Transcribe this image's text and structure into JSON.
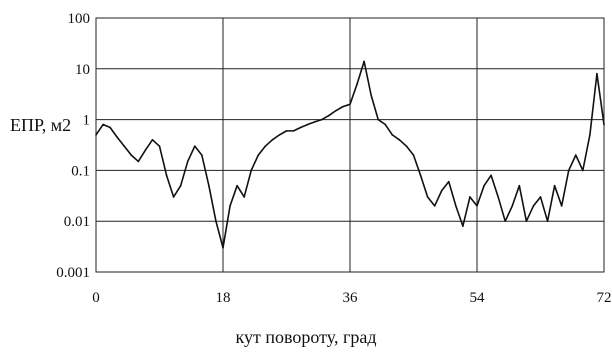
{
  "chart_data": {
    "type": "line",
    "title": "",
    "xlabel": "кут повороту, град",
    "ylabel": "ЕПР, м2",
    "xlim": [
      0,
      72
    ],
    "ylim": [
      0.001,
      100
    ],
    "y_scale": "log",
    "grid": true,
    "x_ticks": [
      0,
      18,
      36,
      54,
      72
    ],
    "x_tick_labels": [
      "0",
      "18",
      "36",
      "54",
      "72"
    ],
    "y_ticks": [
      0.001,
      0.01,
      0.1,
      1,
      10,
      100
    ],
    "y_tick_labels": [
      "0.001",
      "0.01",
      "0.1",
      "1",
      "10",
      "100"
    ],
    "series": [
      {
        "color": "#111111",
        "x": [
          0,
          1,
          2,
          3,
          4,
          5,
          6,
          7,
          8,
          9,
          10,
          11,
          12,
          13,
          14,
          15,
          16,
          17,
          18,
          19,
          20,
          21,
          22,
          23,
          24,
          25,
          26,
          27,
          28,
          29,
          30,
          31,
          32,
          33,
          34,
          35,
          36,
          37,
          38,
          39,
          40,
          41,
          42,
          43,
          44,
          45,
          46,
          47,
          48,
          49,
          50,
          51,
          52,
          53,
          54,
          55,
          56,
          57,
          58,
          59,
          60,
          61,
          62,
          63,
          64,
          65,
          66,
          67,
          68,
          69,
          70,
          71,
          72
        ],
        "y": [
          0.5,
          0.8,
          0.7,
          0.45,
          0.3,
          0.2,
          0.15,
          0.25,
          0.4,
          0.3,
          0.08,
          0.03,
          0.05,
          0.15,
          0.3,
          0.2,
          0.05,
          0.01,
          0.003,
          0.02,
          0.05,
          0.03,
          0.1,
          0.2,
          0.3,
          0.4,
          0.5,
          0.6,
          0.6,
          0.7,
          0.8,
          0.9,
          1.0,
          1.2,
          1.5,
          1.8,
          2.0,
          5.0,
          14,
          3.0,
          1.0,
          0.8,
          0.5,
          0.4,
          0.3,
          0.2,
          0.08,
          0.03,
          0.02,
          0.04,
          0.06,
          0.02,
          0.008,
          0.03,
          0.02,
          0.05,
          0.08,
          0.03,
          0.01,
          0.02,
          0.05,
          0.01,
          0.02,
          0.03,
          0.01,
          0.05,
          0.02,
          0.1,
          0.2,
          0.1,
          0.5,
          8.0,
          0.8
        ]
      }
    ]
  }
}
